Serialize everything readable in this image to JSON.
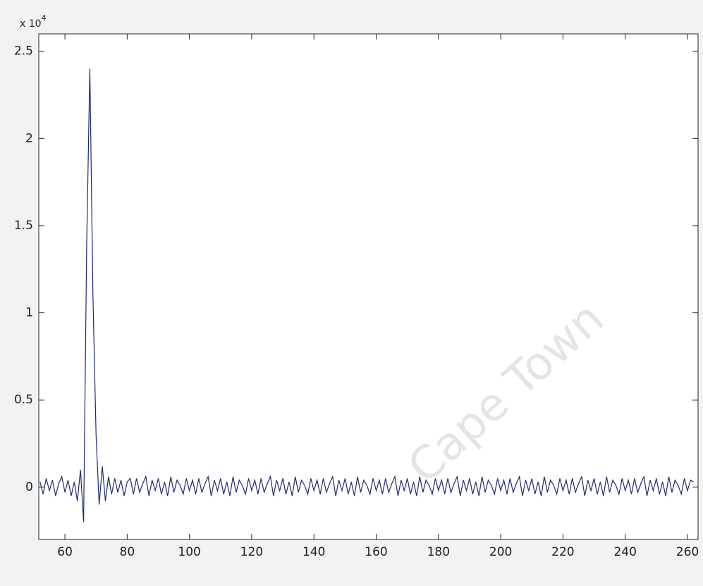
{
  "chart_data": {
    "type": "line",
    "y_multiplier_base": "x 10",
    "y_multiplier_exponent": "4",
    "watermark": "Cape Town",
    "xlim": [
      51.6,
      263.4
    ],
    "ylim": [
      -0.3,
      2.6
    ],
    "xticks": [
      60,
      80,
      100,
      120,
      140,
      160,
      180,
      200,
      220,
      240,
      260
    ],
    "yticks": [
      0,
      0.5,
      1,
      1.5,
      2,
      2.5
    ],
    "x": [
      52,
      53,
      54,
      55,
      56,
      57,
      58,
      59,
      60,
      61,
      62,
      63,
      64,
      65,
      66,
      67,
      68,
      69,
      70,
      71,
      72,
      73,
      74,
      75,
      76,
      77,
      78,
      79,
      80,
      81,
      82,
      83,
      84,
      85,
      86,
      87,
      88,
      89,
      90,
      91,
      92,
      93,
      94,
      95,
      96,
      97,
      98,
      99,
      100,
      101,
      102,
      103,
      104,
      105,
      106,
      107,
      108,
      109,
      110,
      111,
      112,
      113,
      114,
      115,
      116,
      117,
      118,
      119,
      120,
      121,
      122,
      123,
      124,
      125,
      126,
      127,
      128,
      129,
      130,
      131,
      132,
      133,
      134,
      135,
      136,
      137,
      138,
      139,
      140,
      141,
      142,
      143,
      144,
      145,
      146,
      147,
      148,
      149,
      150,
      151,
      152,
      153,
      154,
      155,
      156,
      157,
      158,
      159,
      160,
      161,
      162,
      163,
      164,
      165,
      166,
      167,
      168,
      169,
      170,
      171,
      172,
      173,
      174,
      175,
      176,
      177,
      178,
      179,
      180,
      181,
      182,
      183,
      184,
      185,
      186,
      187,
      188,
      189,
      190,
      191,
      192,
      193,
      194,
      195,
      196,
      197,
      198,
      199,
      200,
      201,
      202,
      203,
      204,
      205,
      206,
      207,
      208,
      209,
      210,
      211,
      212,
      213,
      214,
      215,
      216,
      217,
      218,
      219,
      220,
      221,
      222,
      223,
      224,
      225,
      226,
      227,
      228,
      229,
      230,
      231,
      232,
      233,
      234,
      235,
      236,
      237,
      238,
      239,
      240,
      241,
      242,
      243,
      244,
      245,
      246,
      247,
      248,
      249,
      250,
      251,
      252,
      253,
      254,
      255,
      256,
      257,
      258,
      259,
      260,
      261,
      262
    ],
    "series": [
      {
        "color": "#1c2a70",
        "values": [
          0.03,
          -0.04,
          0.05,
          -0.02,
          0.04,
          -0.05,
          0.02,
          0.06,
          -0.03,
          0.04,
          -0.05,
          0.03,
          -0.08,
          0.1,
          -0.2,
          1.4,
          2.4,
          1.1,
          0.3,
          -0.1,
          0.12,
          -0.08,
          0.06,
          -0.04,
          0.05,
          -0.03,
          0.04,
          -0.05,
          0.03,
          0.05,
          -0.04,
          0.05,
          -0.03,
          0.02,
          0.06,
          -0.05,
          0.04,
          -0.02,
          0.05,
          -0.04,
          0.03,
          -0.05,
          0.06,
          -0.03,
          0.04,
          0.01,
          -0.04,
          0.05,
          -0.02,
          0.04,
          -0.04,
          0.05,
          -0.03,
          0.02,
          0.06,
          -0.05,
          0.04,
          -0.02,
          0.05,
          -0.04,
          0.03,
          -0.05,
          0.06,
          -0.03,
          0.04,
          0.01,
          -0.04,
          0.05,
          -0.02,
          0.04,
          -0.04,
          0.05,
          -0.03,
          0.02,
          0.06,
          -0.05,
          0.04,
          -0.02,
          0.05,
          -0.04,
          0.03,
          -0.05,
          0.06,
          -0.03,
          0.04,
          0.01,
          -0.04,
          0.05,
          -0.02,
          0.04,
          -0.04,
          0.05,
          -0.03,
          0.02,
          0.06,
          -0.05,
          0.04,
          -0.02,
          0.05,
          -0.04,
          0.03,
          -0.05,
          0.06,
          -0.03,
          0.04,
          0.01,
          -0.04,
          0.05,
          -0.02,
          0.04,
          -0.04,
          0.05,
          -0.03,
          0.02,
          0.06,
          -0.05,
          0.04,
          -0.02,
          0.05,
          -0.04,
          0.03,
          -0.05,
          0.06,
          -0.03,
          0.04,
          0.01,
          -0.04,
          0.05,
          -0.02,
          0.04,
          -0.04,
          0.05,
          -0.03,
          0.02,
          0.06,
          -0.05,
          0.04,
          -0.02,
          0.05,
          -0.04,
          0.03,
          -0.05,
          0.06,
          -0.03,
          0.04,
          0.01,
          -0.04,
          0.05,
          -0.02,
          0.04,
          -0.04,
          0.05,
          -0.03,
          0.02,
          0.06,
          -0.05,
          0.04,
          -0.02,
          0.05,
          -0.04,
          0.03,
          -0.05,
          0.06,
          -0.03,
          0.04,
          0.01,
          -0.04,
          0.05,
          -0.02,
          0.04,
          -0.04,
          0.05,
          -0.03,
          0.02,
          0.06,
          -0.05,
          0.04,
          -0.02,
          0.05,
          -0.04,
          0.03,
          -0.05,
          0.06,
          -0.03,
          0.04,
          0.01,
          -0.04,
          0.05,
          -0.02,
          0.04,
          -0.04,
          0.05,
          -0.03,
          0.02,
          0.06,
          -0.05,
          0.04,
          -0.02,
          0.05,
          -0.04,
          0.03,
          -0.05,
          0.06,
          -0.03,
          0.04,
          0.01,
          -0.04,
          0.05,
          -0.02,
          0.04,
          0.03
        ]
      }
    ]
  }
}
